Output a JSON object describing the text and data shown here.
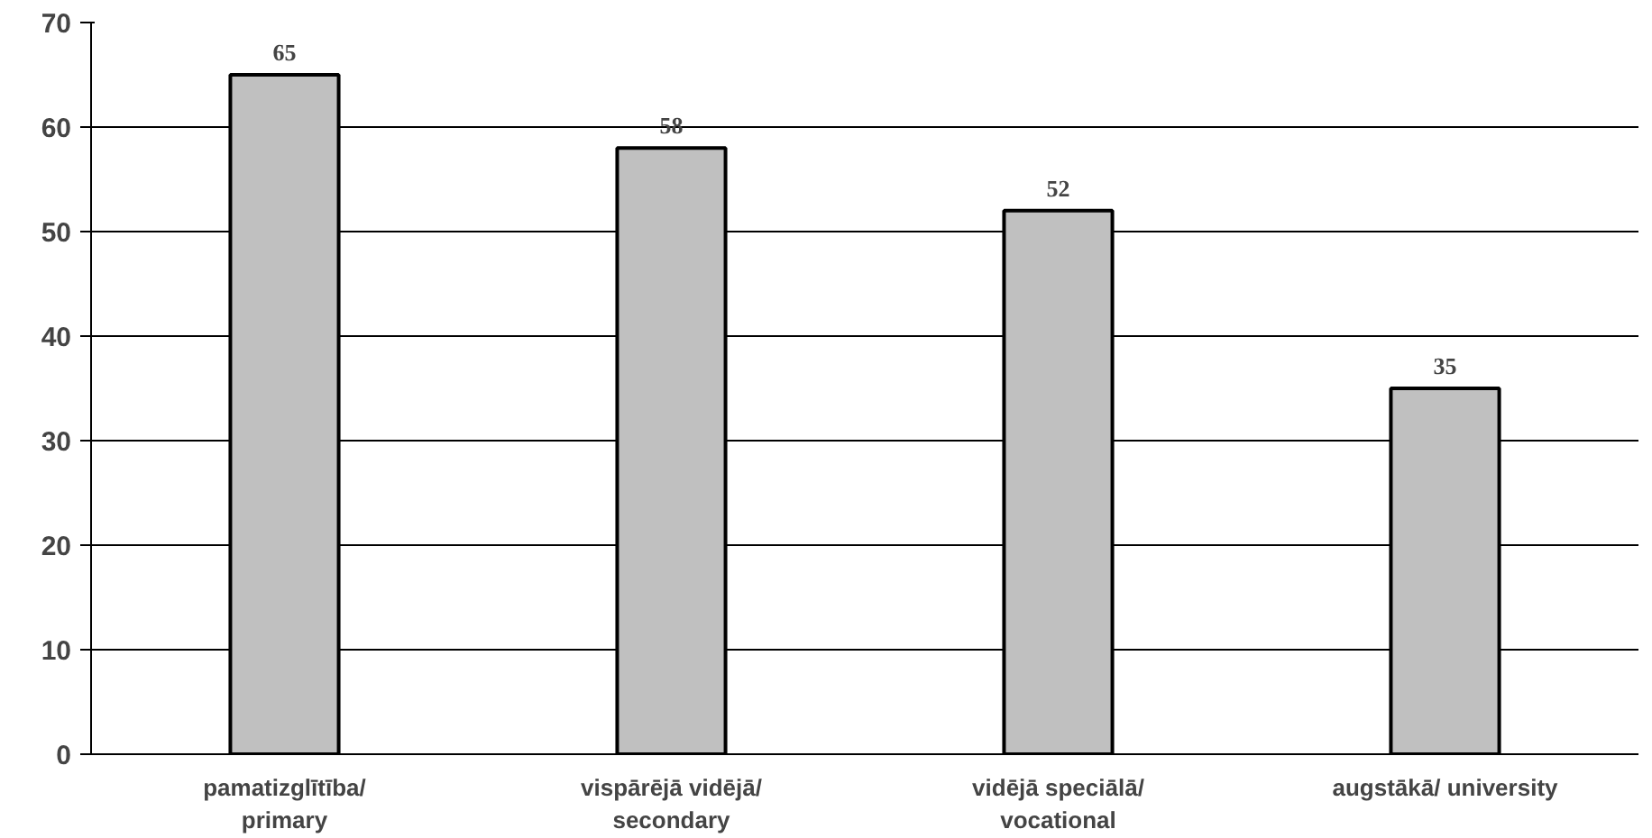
{
  "chart_data": {
    "type": "bar",
    "categories": [
      "pamatizglītība/\nprimary",
      "vispārējā vidējā/\nsecondary",
      "vidējā speciālā/\nvocational",
      "augstākā/ university"
    ],
    "values": [
      65,
      58,
      52,
      35
    ],
    "color": "#c0c0c0",
    "ylim": [
      0,
      70
    ],
    "yticks": [
      0,
      10,
      20,
      30,
      40,
      50,
      60,
      70
    ],
    "grid": "y",
    "data_labels": true
  }
}
